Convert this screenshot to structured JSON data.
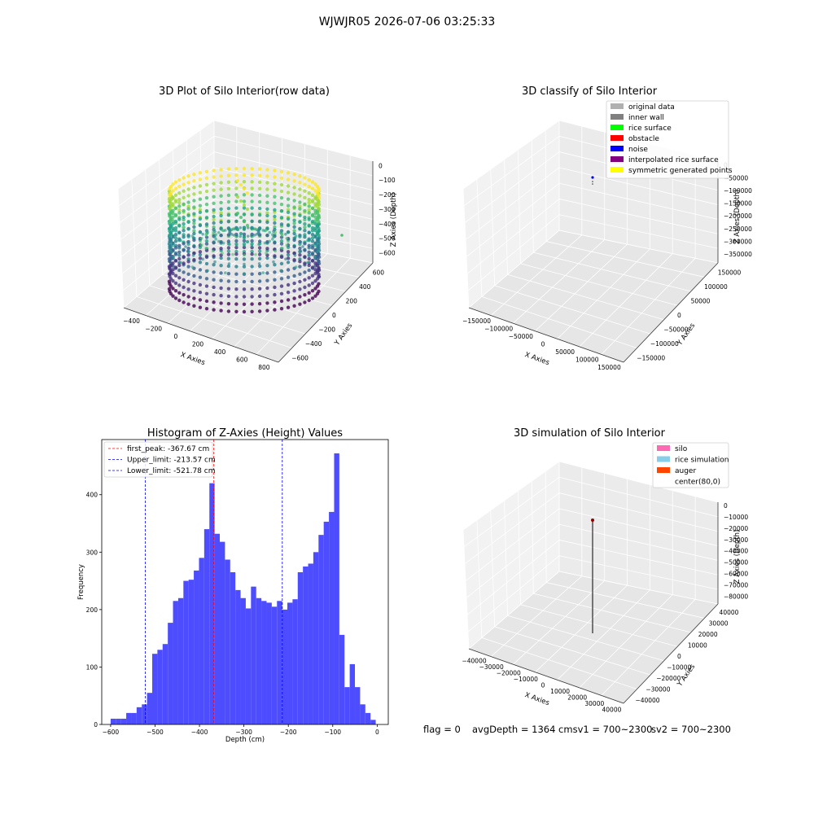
{
  "suptitle": "WJWJR05 2026-07-06 03:25:33",
  "footer": {
    "flag": "flag = 0",
    "avg_depth": "avgDepth = 1364 cmsv1 = 700~2300",
    "sv2": "sv2 = 700~2300"
  },
  "chart_data": [
    {
      "type": "scatter",
      "projection": "3d",
      "title": "3D Plot of Silo Interior(row data)",
      "xlabel": "X Axies",
      "ylabel": "Y Axies",
      "zlabel": "Z Axies (Depth)",
      "x_ticks": [
        "−400",
        "−200",
        "0",
        "200",
        "400",
        "600",
        "800"
      ],
      "y_ticks": [
        "−600",
        "−400",
        "−200",
        "0",
        "200",
        "400",
        "600"
      ],
      "z_ticks": [
        "0",
        "−100",
        "−200",
        "−300",
        "−400",
        "−500",
        "−600"
      ],
      "colormap": "viridis",
      "grid": true
    },
    {
      "type": "scatter",
      "projection": "3d",
      "title": "3D classify of Silo Interior",
      "xlabel": "X Axies",
      "ylabel": "Y Axies",
      "zlabel": "Z Axies (Depth)",
      "x_ticks": [
        "−150000",
        "−100000",
        "−50000",
        "0",
        "50000",
        "100000",
        "150000"
      ],
      "y_ticks": [
        "−150000",
        "−100000",
        "−50000",
        "0",
        "50000",
        "100000",
        "150000"
      ],
      "z_ticks": [
        "0",
        "−50000",
        "−100000",
        "−150000",
        "−200000",
        "−250000",
        "−300000",
        "−350000"
      ],
      "legend": [
        {
          "label": "original data",
          "color": "#b0b0b0"
        },
        {
          "label": "inner wall",
          "color": "#808080"
        },
        {
          "label": "rice surface",
          "color": "#00ff00"
        },
        {
          "label": "obstacle",
          "color": "#ff0000"
        },
        {
          "label": "noise",
          "color": "#0000ff"
        },
        {
          "label": "interpolated rice surface",
          "color": "#800080"
        },
        {
          "label": "symmetric generated points",
          "color": "#ffff00"
        }
      ],
      "legend_position": "upper right",
      "grid": true
    },
    {
      "type": "bar",
      "title": "Histogram of Z-Axies (Height) Values",
      "xlabel": "Depth (cm)",
      "ylabel": "Frequency",
      "xlim": [
        -620,
        25
      ],
      "ylim": [
        0,
        496
      ],
      "x_ticks": [
        -600,
        -500,
        -400,
        -300,
        -200,
        -100,
        0
      ],
      "x_tick_labels": [
        "−600",
        "−500",
        "−400",
        "−300",
        "−200",
        "−100",
        "0"
      ],
      "y_ticks": [
        0,
        100,
        200,
        300,
        400
      ],
      "bar_color": "#4d4dff",
      "bin_start": -600,
      "bin_width": 11.7,
      "values": [
        10,
        10,
        10,
        20,
        20,
        30,
        35,
        55,
        123,
        130,
        140,
        177,
        215,
        220,
        250,
        252,
        268,
        290,
        340,
        420,
        332,
        318,
        287,
        265,
        234,
        220,
        202,
        240,
        220,
        215,
        212,
        205,
        215,
        200,
        212,
        218,
        265,
        275,
        280,
        300,
        330,
        353,
        370,
        472,
        156,
        65,
        105,
        65,
        35,
        20,
        8
      ],
      "vlines": [
        {
          "label": "first_peak: -367.67 cm",
          "x": -367.67,
          "color": "#ff0000"
        },
        {
          "label": "Upper_limit: -213.57 cm",
          "x": -213.57,
          "color": "#0000ff"
        },
        {
          "label": "Lower_limit: -521.78 cm",
          "x": -521.78,
          "color": "#0000ff"
        }
      ],
      "legend_position": "upper left"
    },
    {
      "type": "line",
      "projection": "3d",
      "title": "3D simulation of Silo Interior",
      "xlabel": "X Axies",
      "ylabel": "Y Axies",
      "zlabel": "Z Axies (Depth)",
      "x_ticks": [
        "−40000",
        "−30000",
        "−20000",
        "−10000",
        "0",
        "10000",
        "20000",
        "30000",
        "40000"
      ],
      "y_ticks": [
        "−40000",
        "−30000",
        "−20000",
        "−10000",
        "0",
        "10000",
        "20000",
        "30000",
        "40000"
      ],
      "z_ticks": [
        "0",
        "−10000",
        "−20000",
        "−30000",
        "−40000",
        "−50000",
        "−60000",
        "−70000",
        "−80000"
      ],
      "legend": [
        {
          "label": "silo",
          "color": "#ff69b4"
        },
        {
          "label": "rice simulation",
          "color": "#87ceeb"
        },
        {
          "label": "auger",
          "color": "#ff4500"
        },
        {
          "label": "center(80,0)",
          "color": "#ffffff"
        }
      ],
      "legend_position": "upper right",
      "grid": true
    }
  ]
}
